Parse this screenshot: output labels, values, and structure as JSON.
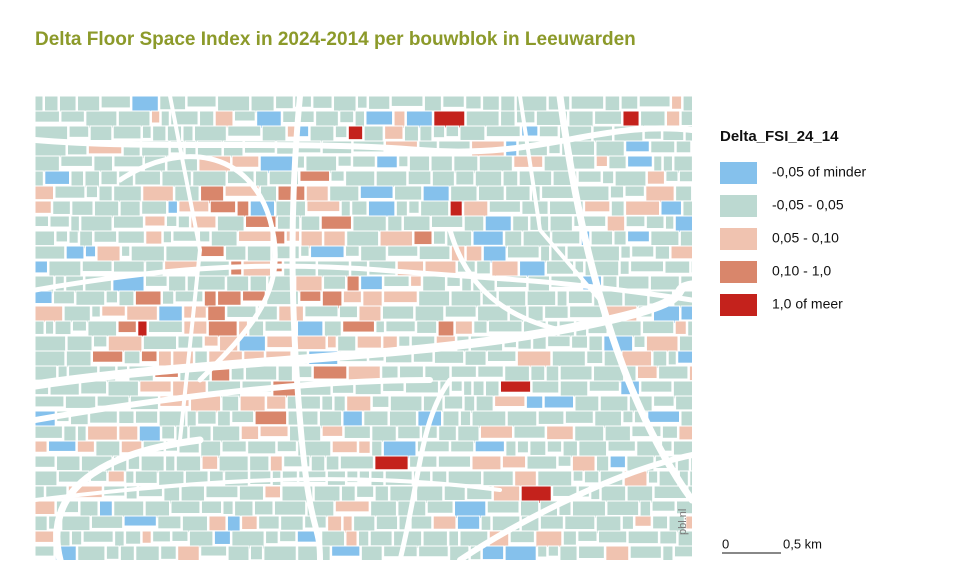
{
  "header": {
    "title": "Delta Floor Space Index in 2024-2014  per bouwblok in Leeuwarden"
  },
  "legend": {
    "title": "Delta_FSI_24_14",
    "items": [
      {
        "label": "-0,05 of minder",
        "color": "#85c1ec"
      },
      {
        "label": "-0,05 - 0,05",
        "color": "#bcd9d1"
      },
      {
        "label": "0,05 - 0,10",
        "color": "#f0c3b0"
      },
      {
        "label": "0,10 - 1,0",
        "color": "#d9866b"
      },
      {
        "label": "1,0 of meer",
        "color": "#c4221c"
      }
    ]
  },
  "scale_bar": {
    "start": "0",
    "end": "0,5 km"
  },
  "credit": "pbl.nl"
}
